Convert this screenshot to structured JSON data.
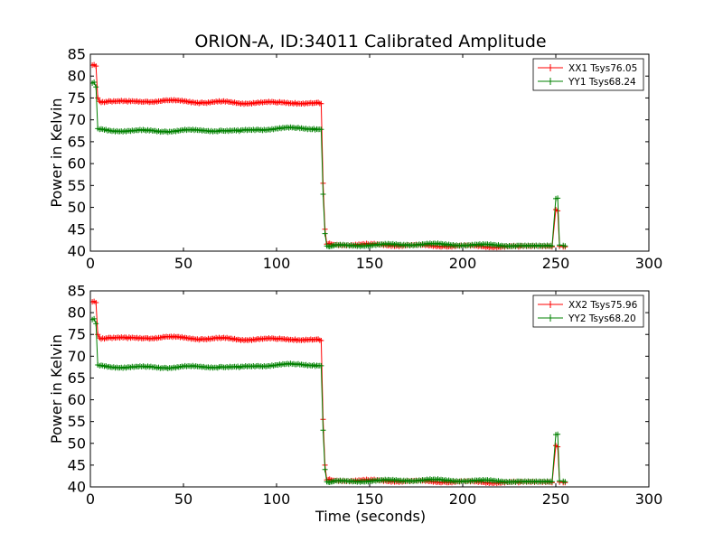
{
  "figure": {
    "title": "ORION-A, ID:34011 Calibrated Amplitude",
    "xlabel": "Time (seconds)",
    "ylabel": "Power in Kelvin"
  },
  "colors": {
    "xx": "#ff0000",
    "yy": "#008000",
    "axes": "#000000",
    "background": "#ffffff"
  },
  "chart_data": [
    {
      "type": "line",
      "title": "ORION-A, ID:34011 Calibrated Amplitude",
      "xlabel": "",
      "ylabel": "Power in Kelvin",
      "xlim": [
        0,
        300
      ],
      "ylim": [
        40,
        85
      ],
      "xticks": [
        "0",
        "50",
        "100",
        "150",
        "200",
        "250",
        "300"
      ],
      "yticks": [
        "40",
        "45",
        "50",
        "55",
        "60",
        "65",
        "70",
        "75",
        "80",
        "85"
      ],
      "grid": false,
      "legend_position": "top-right",
      "marker": "+",
      "series": [
        {
          "name": "XX1 Tsys76.05",
          "color": "#ff0000",
          "points": [
            [
              1,
              82.5
            ],
            [
              2,
              82.6
            ],
            [
              3,
              82.3
            ],
            [
              4,
              75.0
            ],
            [
              5,
              74.2
            ],
            [
              10,
              74.3
            ],
            [
              20,
              74.1
            ],
            [
              30,
              74.2
            ],
            [
              40,
              74.4
            ],
            [
              50,
              74.2
            ],
            [
              60,
              74.0
            ],
            [
              70,
              74.1
            ],
            [
              80,
              73.8
            ],
            [
              90,
              74.0
            ],
            [
              100,
              73.9
            ],
            [
              110,
              73.9
            ],
            [
              120,
              73.8
            ],
            [
              124,
              73.7
            ],
            [
              125,
              55.5
            ],
            [
              126,
              45.0
            ],
            [
              127,
              41.6
            ],
            [
              130,
              41.5
            ],
            [
              150,
              41.5
            ],
            [
              170,
              41.3
            ],
            [
              190,
              41.2
            ],
            [
              210,
              41.1
            ],
            [
              230,
              41.0
            ],
            [
              248,
              41.0
            ],
            [
              250,
              49.5
            ],
            [
              251,
              49.2
            ],
            [
              252,
              41.1
            ],
            [
              254,
              41.0
            ],
            [
              255,
              41.0
            ]
          ]
        },
        {
          "name": "YY1 Tsys68.24",
          "color": "#008000",
          "points": [
            [
              1,
              78.4
            ],
            [
              2,
              78.6
            ],
            [
              3,
              77.5
            ],
            [
              4,
              68.0
            ],
            [
              5,
              67.8
            ],
            [
              10,
              67.6
            ],
            [
              20,
              67.5
            ],
            [
              30,
              67.5
            ],
            [
              40,
              67.4
            ],
            [
              50,
              67.6
            ],
            [
              60,
              67.5
            ],
            [
              70,
              67.6
            ],
            [
              80,
              67.4
            ],
            [
              90,
              67.8
            ],
            [
              100,
              68.0
            ],
            [
              110,
              68.1
            ],
            [
              120,
              68.0
            ],
            [
              124,
              67.8
            ],
            [
              125,
              53.0
            ],
            [
              126,
              44.0
            ],
            [
              127,
              41.2
            ],
            [
              130,
              41.2
            ],
            [
              150,
              41.4
            ],
            [
              170,
              41.5
            ],
            [
              180,
              41.6
            ],
            [
              190,
              41.5
            ],
            [
              210,
              41.4
            ],
            [
              230,
              41.3
            ],
            [
              248,
              41.2
            ],
            [
              250,
              52.0
            ],
            [
              251,
              52.1
            ],
            [
              252,
              41.4
            ],
            [
              254,
              41.3
            ],
            [
              255,
              41.2
            ]
          ]
        }
      ]
    },
    {
      "type": "line",
      "title": "",
      "xlabel": "Time (seconds)",
      "ylabel": "Power in Kelvin",
      "xlim": [
        0,
        300
      ],
      "ylim": [
        40,
        85
      ],
      "xticks": [
        "0",
        "50",
        "100",
        "150",
        "200",
        "250",
        "300"
      ],
      "yticks": [
        "40",
        "45",
        "50",
        "55",
        "60",
        "65",
        "70",
        "75",
        "80",
        "85"
      ],
      "grid": false,
      "legend_position": "top-right",
      "marker": "+",
      "series": [
        {
          "name": "XX2 Tsys75.96",
          "color": "#ff0000",
          "points": [
            [
              1,
              82.5
            ],
            [
              2,
              82.6
            ],
            [
              3,
              82.3
            ],
            [
              4,
              75.0
            ],
            [
              5,
              74.2
            ],
            [
              10,
              74.3
            ],
            [
              20,
              74.1
            ],
            [
              30,
              74.2
            ],
            [
              40,
              74.4
            ],
            [
              50,
              74.2
            ],
            [
              60,
              74.0
            ],
            [
              70,
              74.1
            ],
            [
              80,
              73.8
            ],
            [
              90,
              74.0
            ],
            [
              100,
              73.9
            ],
            [
              110,
              73.9
            ],
            [
              120,
              73.8
            ],
            [
              124,
              73.6
            ],
            [
              125,
              55.5
            ],
            [
              126,
              45.0
            ],
            [
              127,
              41.6
            ],
            [
              130,
              41.5
            ],
            [
              150,
              41.5
            ],
            [
              170,
              41.3
            ],
            [
              190,
              41.2
            ],
            [
              210,
              41.1
            ],
            [
              230,
              41.0
            ],
            [
              248,
              41.0
            ],
            [
              250,
              49.5
            ],
            [
              251,
              49.2
            ],
            [
              252,
              41.1
            ],
            [
              254,
              41.0
            ],
            [
              255,
              41.0
            ]
          ]
        },
        {
          "name": "YY2 Tsys68.20",
          "color": "#008000",
          "points": [
            [
              1,
              78.4
            ],
            [
              2,
              78.6
            ],
            [
              3,
              77.5
            ],
            [
              4,
              68.0
            ],
            [
              5,
              67.8
            ],
            [
              10,
              67.6
            ],
            [
              20,
              67.5
            ],
            [
              30,
              67.5
            ],
            [
              40,
              67.4
            ],
            [
              50,
              67.6
            ],
            [
              60,
              67.5
            ],
            [
              70,
              67.6
            ],
            [
              80,
              67.4
            ],
            [
              90,
              67.8
            ],
            [
              100,
              68.0
            ],
            [
              110,
              68.1
            ],
            [
              120,
              68.0
            ],
            [
              124,
              67.8
            ],
            [
              125,
              53.0
            ],
            [
              126,
              44.0
            ],
            [
              127,
              41.2
            ],
            [
              130,
              41.2
            ],
            [
              150,
              41.4
            ],
            [
              170,
              41.5
            ],
            [
              180,
              41.6
            ],
            [
              190,
              41.5
            ],
            [
              210,
              41.4
            ],
            [
              230,
              41.3
            ],
            [
              248,
              41.2
            ],
            [
              250,
              52.0
            ],
            [
              251,
              52.1
            ],
            [
              252,
              41.4
            ],
            [
              254,
              41.3
            ],
            [
              255,
              41.2
            ]
          ]
        }
      ]
    }
  ]
}
